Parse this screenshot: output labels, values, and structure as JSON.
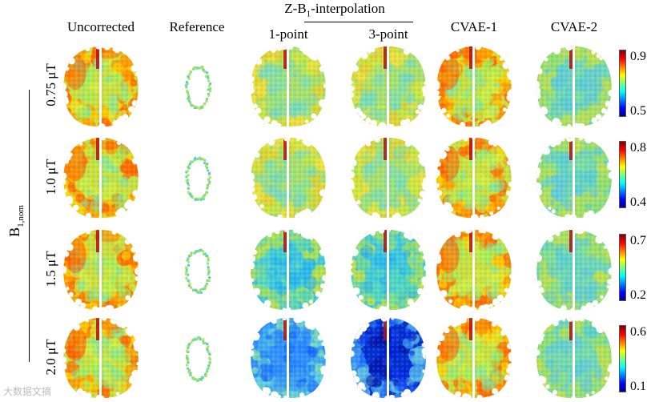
{
  "headers": {
    "uncorrected": "Uncorrected",
    "reference": "Reference",
    "zb1": "Z-B",
    "zb1_sub": "1",
    "zb1_tail": "-interpolation",
    "point1": "1-point",
    "point3": "3-point",
    "cvae1": "CVAE-1",
    "cvae2": "CVAE-2"
  },
  "axis": {
    "label": "B",
    "sub": "1,nom"
  },
  "rows": [
    {
      "label": "0.75 μT",
      "cbar_max": "0.9",
      "cbar_min": "0.5"
    },
    {
      "label": "1.0 μT",
      "cbar_max": "0.8",
      "cbar_min": "0.4"
    },
    {
      "label": "1.5 μT",
      "cbar_max": "0.7",
      "cbar_min": "0.2"
    },
    {
      "label": "2.0 μT",
      "cbar_max": "0.6",
      "cbar_min": "0.1"
    }
  ],
  "maps": [
    [
      "warm",
      "ring",
      "mild",
      "mild",
      "warm",
      "cool"
    ],
    [
      "warm",
      "ring",
      "mild",
      "mild",
      "warm",
      "cool"
    ],
    [
      "warm",
      "ring",
      "cyan",
      "cyan",
      "warm",
      "cool"
    ],
    [
      "warm",
      "ring",
      "blue",
      "deep",
      "warm",
      "cool"
    ]
  ],
  "watermark": "大数据文摘"
}
